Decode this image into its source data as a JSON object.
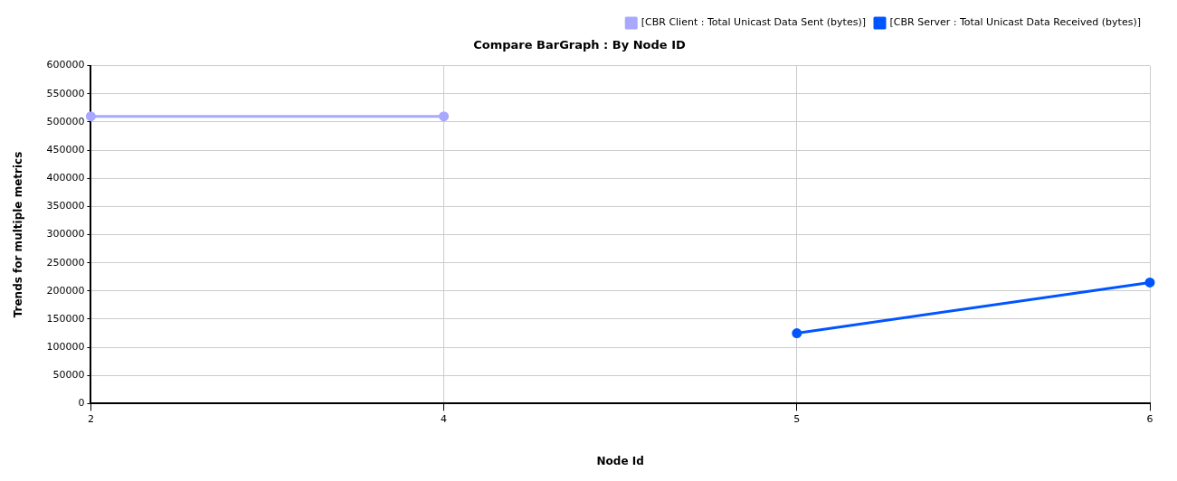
{
  "chart_data": {
    "type": "line",
    "title": "Compare BarGraph : By Node ID",
    "xlabel": "Node Id",
    "ylabel": "Trends for multiple metrics",
    "categories": [
      "2",
      "4",
      "5",
      "6"
    ],
    "series": [
      {
        "name": "[CBR Client : Total Unicast Data Sent (bytes)]",
        "color": "#a8a8ff",
        "values": [
          510000,
          510000,
          null,
          null
        ]
      },
      {
        "name": "[CBR Server : Total Unicast Data Received (bytes)]",
        "color": "#0055ff",
        "values": [
          null,
          null,
          125000,
          215000
        ]
      }
    ],
    "ylim": [
      0,
      600000
    ],
    "yticks": [
      0,
      50000,
      100000,
      150000,
      200000,
      250000,
      300000,
      350000,
      400000,
      450000,
      500000,
      550000,
      600000
    ],
    "grid": true,
    "legend": "top right",
    "marker": "circle",
    "line_style": "solid"
  }
}
